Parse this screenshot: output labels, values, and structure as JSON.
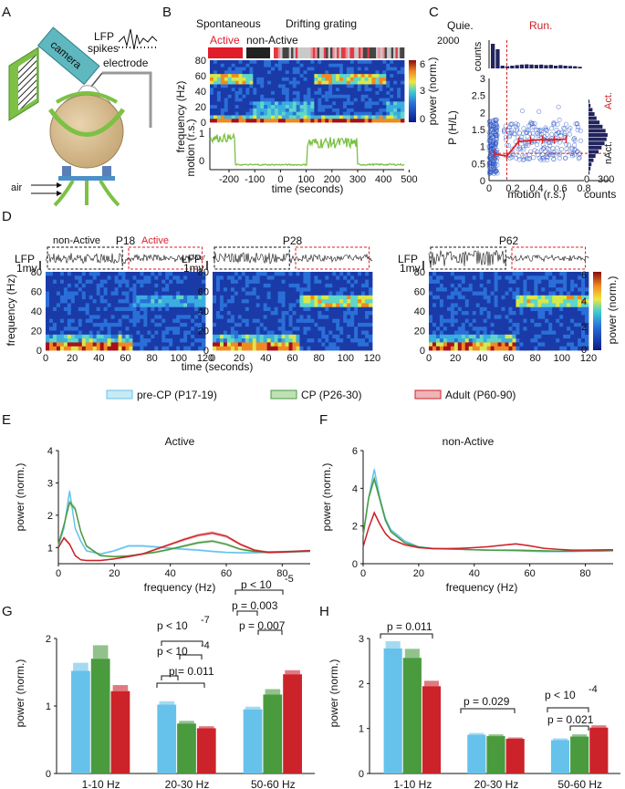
{
  "panel_letters": [
    "A",
    "B",
    "C",
    "D",
    "E",
    "F",
    "G",
    "H"
  ],
  "colors": {
    "precp": "#66c2ea",
    "cp": "#4a9a3e",
    "adult": "#cc2229",
    "active": "#e11d2a",
    "nonactive": "#222222",
    "ref": "#d9232a",
    "scatter": "#2e58c8",
    "hist": "#22245e",
    "trace": "#7ac142"
  },
  "panelA": {
    "camera": "camera",
    "lfp": "LFP",
    "spikes": "spikes",
    "electrode": "electrode",
    "air": "air"
  },
  "panelB": {
    "cond_spont": "Spontaneous",
    "cond_drift": "Drifting grating",
    "active": "Active",
    "nonactive": "non-Active",
    "ylabel": "frequency (Hz)",
    "yticks": [
      "80",
      "60",
      "40",
      "20",
      "0"
    ],
    "cbar_label": "power (norm.)",
    "cbar_ticks": [
      "6",
      "3",
      "0"
    ],
    "motion_label": "motion (r.s.)",
    "motion_ticks": [
      "1",
      "0"
    ],
    "xlabel": "time (seconds)",
    "xticks": [
      "-200",
      "-100",
      "0",
      "100",
      "200",
      "300",
      "400",
      "500"
    ]
  },
  "panelC": {
    "quie": "Quie.",
    "run": "Run.",
    "counts_top": "counts",
    "counts_top_tick": "2000",
    "ylabel": "P (H/L)",
    "yticks": [
      "3",
      "2.5",
      "2",
      "1.5",
      "1",
      "0.5",
      "0"
    ],
    "xlabel": "motion (r.s.)",
    "xticks": [
      "0",
      "0.2",
      "0.4",
      "0.6",
      "0.8"
    ],
    "act": "Act.",
    "nact": "nAct.",
    "counts_right": "counts",
    "counts_right_ticks": [
      "0",
      "300"
    ]
  },
  "panelD": {
    "ages": [
      "P18",
      "P28",
      "P62"
    ],
    "lfp": "LFP",
    "scale": "1mv",
    "nonactive": "non-Active",
    "active": "Active",
    "ylabel": "frequency (Hz)",
    "yticks": [
      "80",
      "60",
      "40",
      "20",
      "0"
    ],
    "xlabel": "time (seconds)",
    "xticks": [
      "0",
      "20",
      "40",
      "60",
      "80",
      "100",
      "120"
    ],
    "cbar_label": "power (norm.)",
    "cbar_ticks": [
      "6",
      "4",
      "2",
      "0"
    ]
  },
  "legend": [
    "pre-CP (P17-19)",
    "CP (P26-30)",
    "Adult (P60-90)"
  ],
  "panelE": {
    "title": "Active",
    "ylabel": "power (norm.)",
    "xlabel": "frequency (Hz)",
    "yticks": [
      "4",
      "3",
      "2",
      "1"
    ],
    "xticks": [
      "0",
      "20",
      "40",
      "60",
      "80"
    ]
  },
  "panelF": {
    "title": "non-Active",
    "ylabel": "power (norm.)",
    "xlabel": "frequency (Hz)",
    "yticks": [
      "6",
      "4",
      "2",
      "0"
    ],
    "xticks": [
      "0",
      "20",
      "40",
      "60",
      "80"
    ]
  },
  "panelG": {
    "ylabel": "power (norm.)",
    "yticks": [
      "2",
      "1",
      "0"
    ],
    "groups": [
      "1-10 Hz",
      "20-30 Hz",
      "50-60 Hz"
    ],
    "pvals": [
      "p < 10",
      "-7",
      "p < 10",
      "-4",
      "p = 0.011",
      "p < 10",
      "-5",
      "p = 0.003",
      "p = 0.007"
    ]
  },
  "panelH": {
    "ylabel": "power (norm.)",
    "yticks": [
      "3",
      "2",
      "1",
      "0"
    ],
    "groups": [
      "1-10 Hz",
      "20-30 Hz",
      "50-60 Hz"
    ],
    "pvals": [
      "p = 0.011",
      "p = 0.029",
      "p < 10",
      "-4",
      "p = 0.021"
    ]
  },
  "chart_data": [
    {
      "id": "C-scatter",
      "type": "scatter",
      "title": "",
      "xlabel": "motion (r.s.)",
      "ylabel": "P (H/L)",
      "xlim": [
        0,
        0.8
      ],
      "ylim": [
        0,
        3
      ],
      "threshold_x": 0.15,
      "reference_y": 0.8,
      "binned_x": [
        0.05,
        0.15,
        0.25,
        0.35,
        0.45,
        0.55,
        0.65
      ],
      "binned_y": [
        0.78,
        0.72,
        1.15,
        1.18,
        1.2,
        1.2,
        1.22
      ]
    },
    {
      "id": "E",
      "type": "line",
      "title": "Active",
      "xlabel": "frequency (Hz)",
      "ylabel": "power (norm.)",
      "xlim": [
        0,
        90
      ],
      "ylim": [
        0.5,
        4
      ],
      "x": [
        0,
        2,
        4,
        6,
        8,
        10,
        15,
        20,
        25,
        30,
        35,
        40,
        45,
        50,
        55,
        60,
        65,
        70,
        75,
        80,
        85,
        90
      ],
      "series": [
        {
          "name": "pre-CP (P17-19)",
          "values": [
            1.05,
            1.6,
            2.75,
            1.6,
            1.2,
            0.9,
            0.8,
            0.9,
            1.05,
            1.05,
            1.02,
            0.98,
            0.95,
            0.92,
            0.88,
            0.85,
            0.84,
            0.84,
            0.85,
            0.86,
            0.87,
            0.88
          ]
        },
        {
          "name": "CP (P26-30)",
          "values": [
            1.1,
            1.7,
            2.4,
            2.2,
            1.5,
            1.05,
            0.75,
            0.72,
            0.74,
            0.8,
            0.86,
            0.95,
            1.05,
            1.15,
            1.2,
            1.1,
            0.95,
            0.88,
            0.86,
            0.87,
            0.88,
            0.9
          ]
        },
        {
          "name": "Adult (P60-90)",
          "values": [
            1.0,
            1.3,
            1.1,
            0.75,
            0.62,
            0.6,
            0.6,
            0.65,
            0.72,
            0.8,
            0.95,
            1.1,
            1.25,
            1.38,
            1.45,
            1.35,
            1.1,
            0.92,
            0.85,
            0.86,
            0.88,
            0.9
          ]
        }
      ]
    },
    {
      "id": "F",
      "type": "line",
      "title": "non-Active",
      "xlabel": "frequency (Hz)",
      "ylabel": "power (norm.)",
      "xlim": [
        0,
        90
      ],
      "ylim": [
        0,
        6
      ],
      "x": [
        0,
        2,
        4,
        6,
        8,
        10,
        15,
        20,
        25,
        30,
        35,
        40,
        45,
        50,
        55,
        60,
        65,
        70,
        75,
        80,
        85,
        90
      ],
      "series": [
        {
          "name": "pre-CP (P17-19)",
          "values": [
            1.5,
            3.5,
            5.0,
            3.5,
            2.4,
            1.8,
            1.2,
            0.9,
            0.82,
            0.8,
            0.76,
            0.74,
            0.72,
            0.7,
            0.68,
            0.66,
            0.64,
            0.64,
            0.65,
            0.66,
            0.67,
            0.68
          ]
        },
        {
          "name": "CP (P26-30)",
          "values": [
            1.5,
            3.5,
            4.5,
            3.4,
            2.3,
            1.7,
            1.1,
            0.88,
            0.8,
            0.78,
            0.76,
            0.74,
            0.72,
            0.72,
            0.72,
            0.7,
            0.68,
            0.67,
            0.67,
            0.68,
            0.69,
            0.7
          ]
        },
        {
          "name": "Adult (P60-90)",
          "values": [
            0.9,
            1.9,
            2.7,
            2.1,
            1.6,
            1.3,
            1.0,
            0.85,
            0.8,
            0.8,
            0.82,
            0.85,
            0.9,
            0.98,
            1.05,
            0.95,
            0.82,
            0.76,
            0.72,
            0.72,
            0.73,
            0.74
          ]
        }
      ]
    },
    {
      "id": "G",
      "type": "bar",
      "title": "",
      "ylabel": "power (norm.)",
      "ylim": [
        0,
        2
      ],
      "categories": [
        "1-10 Hz",
        "20-30 Hz",
        "50-60 Hz"
      ],
      "series": [
        {
          "name": "pre-CP (P17-19)",
          "values": [
            1.52,
            1.02,
            0.95
          ],
          "errors": [
            0.12,
            0.05,
            0.04
          ]
        },
        {
          "name": "CP (P26-30)",
          "values": [
            1.7,
            0.74,
            1.17
          ],
          "errors": [
            0.2,
            0.04,
            0.08
          ]
        },
        {
          "name": "Adult (P60-90)",
          "values": [
            1.22,
            0.67,
            1.47
          ],
          "errors": [
            0.09,
            0.03,
            0.06
          ]
        }
      ]
    },
    {
      "id": "H",
      "type": "bar",
      "title": "",
      "ylabel": "power (norm.)",
      "ylim": [
        0,
        3
      ],
      "categories": [
        "1-10 Hz",
        "20-30 Hz",
        "50-60 Hz"
      ],
      "series": [
        {
          "name": "pre-CP (P17-19)",
          "values": [
            2.78,
            0.86,
            0.74
          ],
          "errors": [
            0.16,
            0.04,
            0.04
          ]
        },
        {
          "name": "CP (P26-30)",
          "values": [
            2.57,
            0.83,
            0.82
          ],
          "errors": [
            0.2,
            0.04,
            0.05
          ]
        },
        {
          "name": "Adult (P60-90)",
          "values": [
            1.94,
            0.77,
            1.02
          ],
          "errors": [
            0.12,
            0.03,
            0.05
          ]
        }
      ]
    }
  ]
}
